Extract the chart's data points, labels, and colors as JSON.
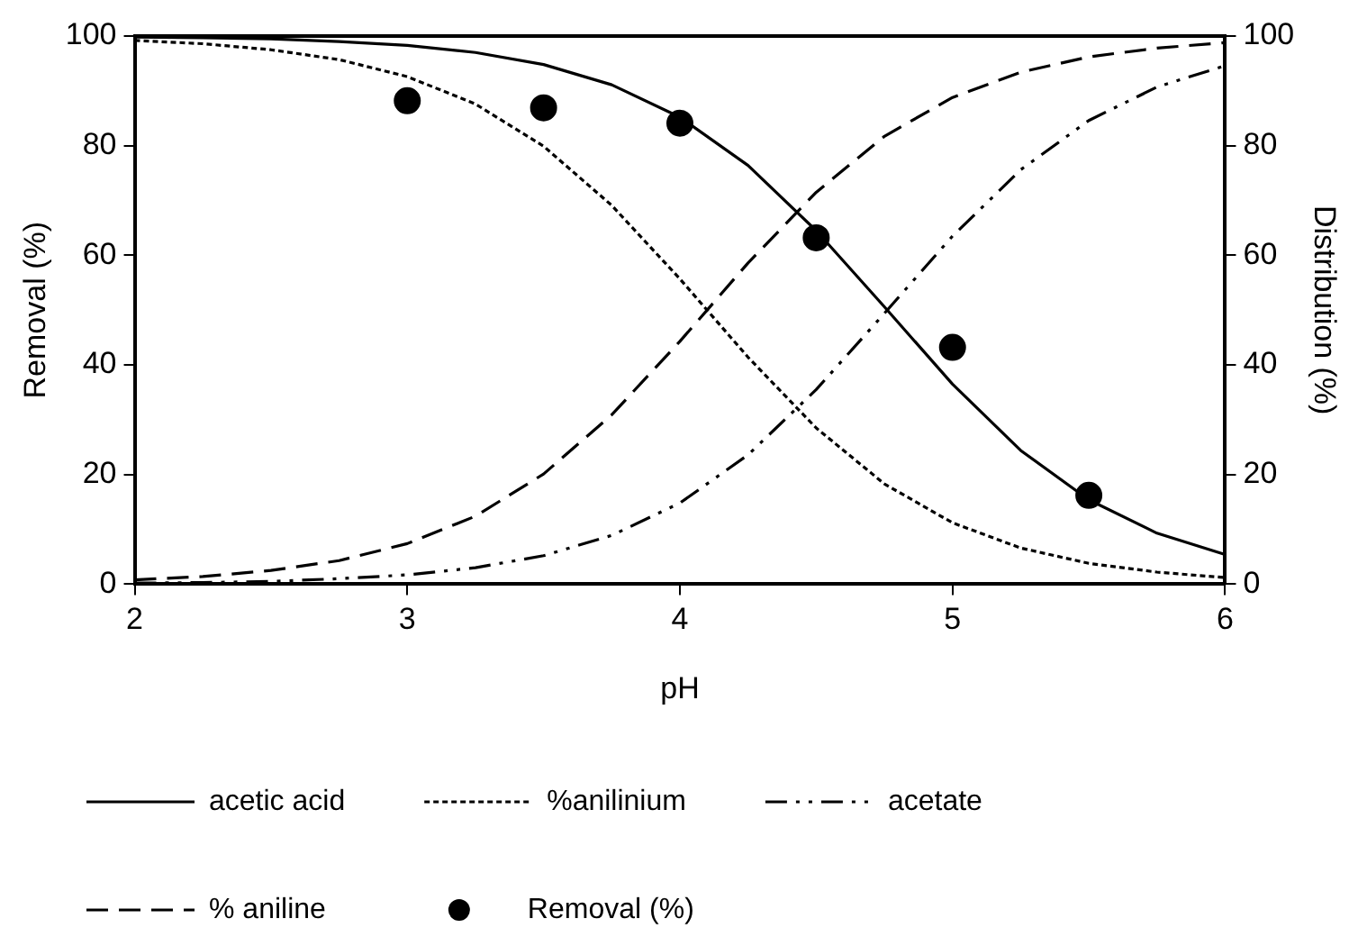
{
  "chart_data": {
    "type": "line",
    "xlabel": "pH",
    "ylabel": "Removal (%)",
    "y2label": "Distribution (%)",
    "x": [
      2,
      2.25,
      2.5,
      2.75,
      3,
      3.25,
      3.5,
      3.75,
      4,
      4.25,
      4.5,
      4.75,
      5,
      5.25,
      5.5,
      5.75,
      6
    ],
    "xlim": [
      2,
      6
    ],
    "xticks": [
      2,
      3,
      4,
      5,
      6
    ],
    "ylim": [
      0,
      100
    ],
    "yticks": [
      0,
      20,
      40,
      60,
      80,
      100
    ],
    "y2lim": [
      0,
      100
    ],
    "y2ticks": [
      0,
      20,
      40,
      60,
      80,
      100
    ],
    "grid": false,
    "legend": "bottom",
    "marker": "none",
    "series": [
      {
        "name": "acetic acid",
        "color": "#000000",
        "line_style": "solid",
        "values": [
          99.8,
          99.7,
          99.5,
          99.0,
          98.3,
          97.0,
          94.8,
          91.1,
          85.2,
          76.4,
          64.5,
          50.6,
          36.5,
          24.4,
          15.4,
          9.3,
          5.4
        ]
      },
      {
        "name": "%anilinium",
        "color": "#000000",
        "line_style": "dotted",
        "values": [
          99.2,
          98.6,
          97.5,
          95.7,
          92.6,
          87.6,
          79.9,
          69.1,
          55.7,
          41.4,
          28.5,
          18.3,
          11.2,
          6.6,
          3.8,
          2.2,
          1.2
        ]
      },
      {
        "name": "acetate",
        "color": "#000000",
        "line_style": "dashdotdot",
        "values": [
          0.2,
          0.3,
          0.5,
          1.0,
          1.7,
          3.0,
          5.2,
          8.9,
          14.8,
          23.6,
          35.5,
          49.4,
          63.5,
          75.6,
          84.6,
          90.7,
          94.6
        ]
      },
      {
        "name": "% aniline",
        "color": "#000000",
        "line_style": "dashed",
        "values": [
          0.8,
          1.4,
          2.5,
          4.3,
          7.4,
          12.4,
          20.1,
          30.9,
          44.3,
          58.6,
          71.5,
          81.7,
          88.8,
          93.4,
          96.2,
          97.8,
          98.8
        ]
      },
      {
        "name": "Removal (%)",
        "type": "scatter",
        "color": "#000000",
        "marker": "circle",
        "x": [
          3,
          3.5,
          4,
          4.5,
          5,
          5.5
        ],
        "values": [
          88.2,
          86.9,
          84.1,
          63.2,
          43.2,
          16.2
        ]
      }
    ]
  }
}
